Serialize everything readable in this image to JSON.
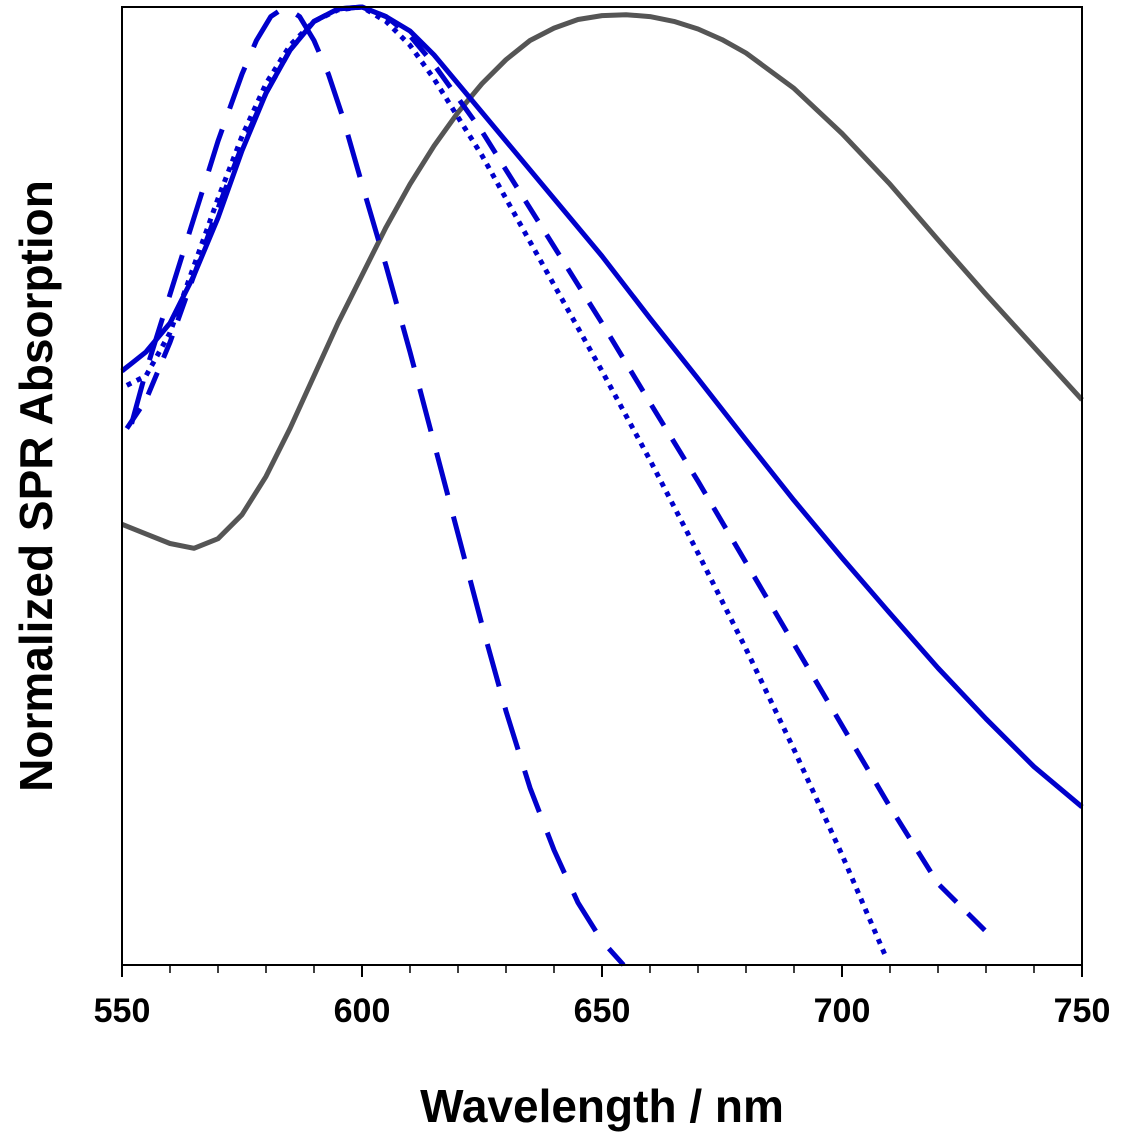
{
  "chart_data": {
    "type": "line",
    "title": "",
    "xlabel": "Wavelength / nm",
    "ylabel": "Normalized SPR Absorption",
    "xlim": [
      550,
      750
    ],
    "ylim": [
      0,
      1.0
    ],
    "x_ticks": [
      550,
      600,
      650,
      700,
      750
    ],
    "x_minor_step": 10,
    "y_ticks_shown": false,
    "grid": false,
    "legend": "none",
    "series": [
      {
        "color": "#555555",
        "style": "solid",
        "x": [
          550,
          555,
          560,
          565,
          570,
          575,
          580,
          585,
          590,
          595,
          600,
          605,
          610,
          615,
          620,
          625,
          630,
          635,
          640,
          645,
          650,
          655,
          660,
          665,
          670,
          675,
          680,
          690,
          700,
          710,
          720,
          730,
          740,
          750
        ],
        "y": [
          0.46,
          0.45,
          0.44,
          0.435,
          0.445,
          0.47,
          0.51,
          0.56,
          0.615,
          0.67,
          0.72,
          0.77,
          0.815,
          0.855,
          0.89,
          0.92,
          0.945,
          0.965,
          0.978,
          0.987,
          0.991,
          0.992,
          0.99,
          0.985,
          0.977,
          0.966,
          0.952,
          0.915,
          0.868,
          0.815,
          0.757,
          0.7,
          0.645,
          0.59
        ]
      },
      {
        "color": "#0000cc",
        "style": "solid",
        "x": [
          550,
          555,
          560,
          565,
          570,
          575,
          580,
          585,
          590,
          595,
          600,
          605,
          610,
          615,
          620,
          625,
          630,
          640,
          650,
          660,
          670,
          680,
          690,
          700,
          710,
          720,
          730,
          740,
          750
        ],
        "y": [
          0.62,
          0.64,
          0.67,
          0.72,
          0.78,
          0.85,
          0.91,
          0.955,
          0.985,
          0.998,
          1.0,
          0.99,
          0.975,
          0.95,
          0.92,
          0.89,
          0.86,
          0.8,
          0.74,
          0.675,
          0.612,
          0.548,
          0.485,
          0.425,
          0.367,
          0.31,
          0.257,
          0.207,
          0.165
        ]
      },
      {
        "color": "#0000cc",
        "style": "dotted",
        "x": [
          551,
          555,
          560,
          565,
          570,
          575,
          580,
          585,
          590,
          595,
          600,
          605,
          610,
          615,
          620,
          625,
          630,
          640,
          650,
          660,
          670,
          680,
          690,
          700,
          709
        ],
        "y": [
          0.605,
          0.615,
          0.66,
          0.73,
          0.8,
          0.865,
          0.92,
          0.96,
          0.985,
          0.997,
          1.0,
          0.985,
          0.96,
          0.925,
          0.885,
          0.845,
          0.8,
          0.71,
          0.62,
          0.527,
          0.43,
          0.33,
          0.225,
          0.115,
          0.01
        ]
      },
      {
        "color": "#0000cc",
        "style": "dashed",
        "x": [
          551,
          555,
          560,
          565,
          570,
          575,
          580,
          585,
          590,
          595,
          600,
          605,
          610,
          615,
          620,
          625,
          630,
          640,
          650,
          660,
          670,
          680,
          690,
          700,
          710,
          720,
          731
        ],
        "y": [
          0.56,
          0.59,
          0.65,
          0.72,
          0.79,
          0.855,
          0.91,
          0.955,
          0.985,
          0.998,
          1.0,
          0.99,
          0.97,
          0.94,
          0.905,
          0.87,
          0.83,
          0.75,
          0.67,
          0.587,
          0.505,
          0.42,
          0.335,
          0.25,
          0.165,
          0.085,
          0.03
        ]
      },
      {
        "color": "#0000cc",
        "style": "longdash",
        "x": [
          552,
          555,
          560,
          565,
          570,
          575,
          578,
          581,
          584,
          587,
          590,
          593,
          596,
          600,
          605,
          610,
          615,
          620,
          625,
          630,
          635,
          640,
          645,
          650,
          654.5
        ],
        "y": [
          0.565,
          0.62,
          0.7,
          0.78,
          0.86,
          0.93,
          0.965,
          0.99,
          1.0,
          0.99,
          0.965,
          0.93,
          0.885,
          0.815,
          0.73,
          0.64,
          0.545,
          0.45,
          0.355,
          0.265,
          0.185,
          0.12,
          0.065,
          0.025,
          0.0
        ]
      }
    ]
  }
}
